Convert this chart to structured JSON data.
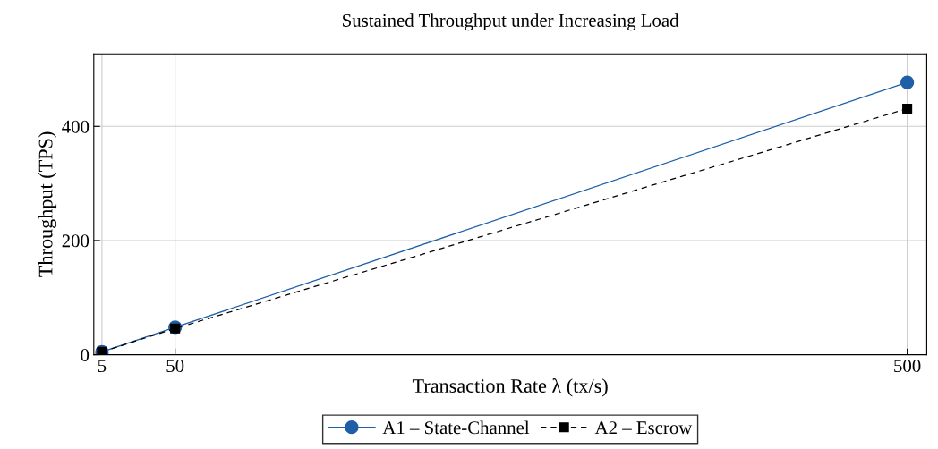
{
  "chart_data": {
    "type": "line",
    "title": "Sustained Throughput under Increasing Load",
    "xlabel": "Transaction Rate λ (tx/s)",
    "ylabel": "Throughput (TPS)",
    "x": [
      5,
      50,
      500
    ],
    "series": [
      {
        "name": "A1 – State-Channel",
        "color": "#1f5fa8",
        "values": [
          5,
          48,
          477
        ],
        "marker": "circle",
        "line_style": "solid"
      },
      {
        "name": "A2 – Escrow",
        "color": "#000000",
        "values": [
          5,
          46,
          431
        ],
        "marker": "square",
        "line_style": "dashed"
      }
    ],
    "xlim": [
      0,
      512
    ],
    "ylim": [
      0,
      527
    ],
    "xticks": [
      5,
      50,
      500
    ],
    "yticks": [
      0,
      200,
      400
    ],
    "grid": true,
    "legend": "bottom"
  }
}
